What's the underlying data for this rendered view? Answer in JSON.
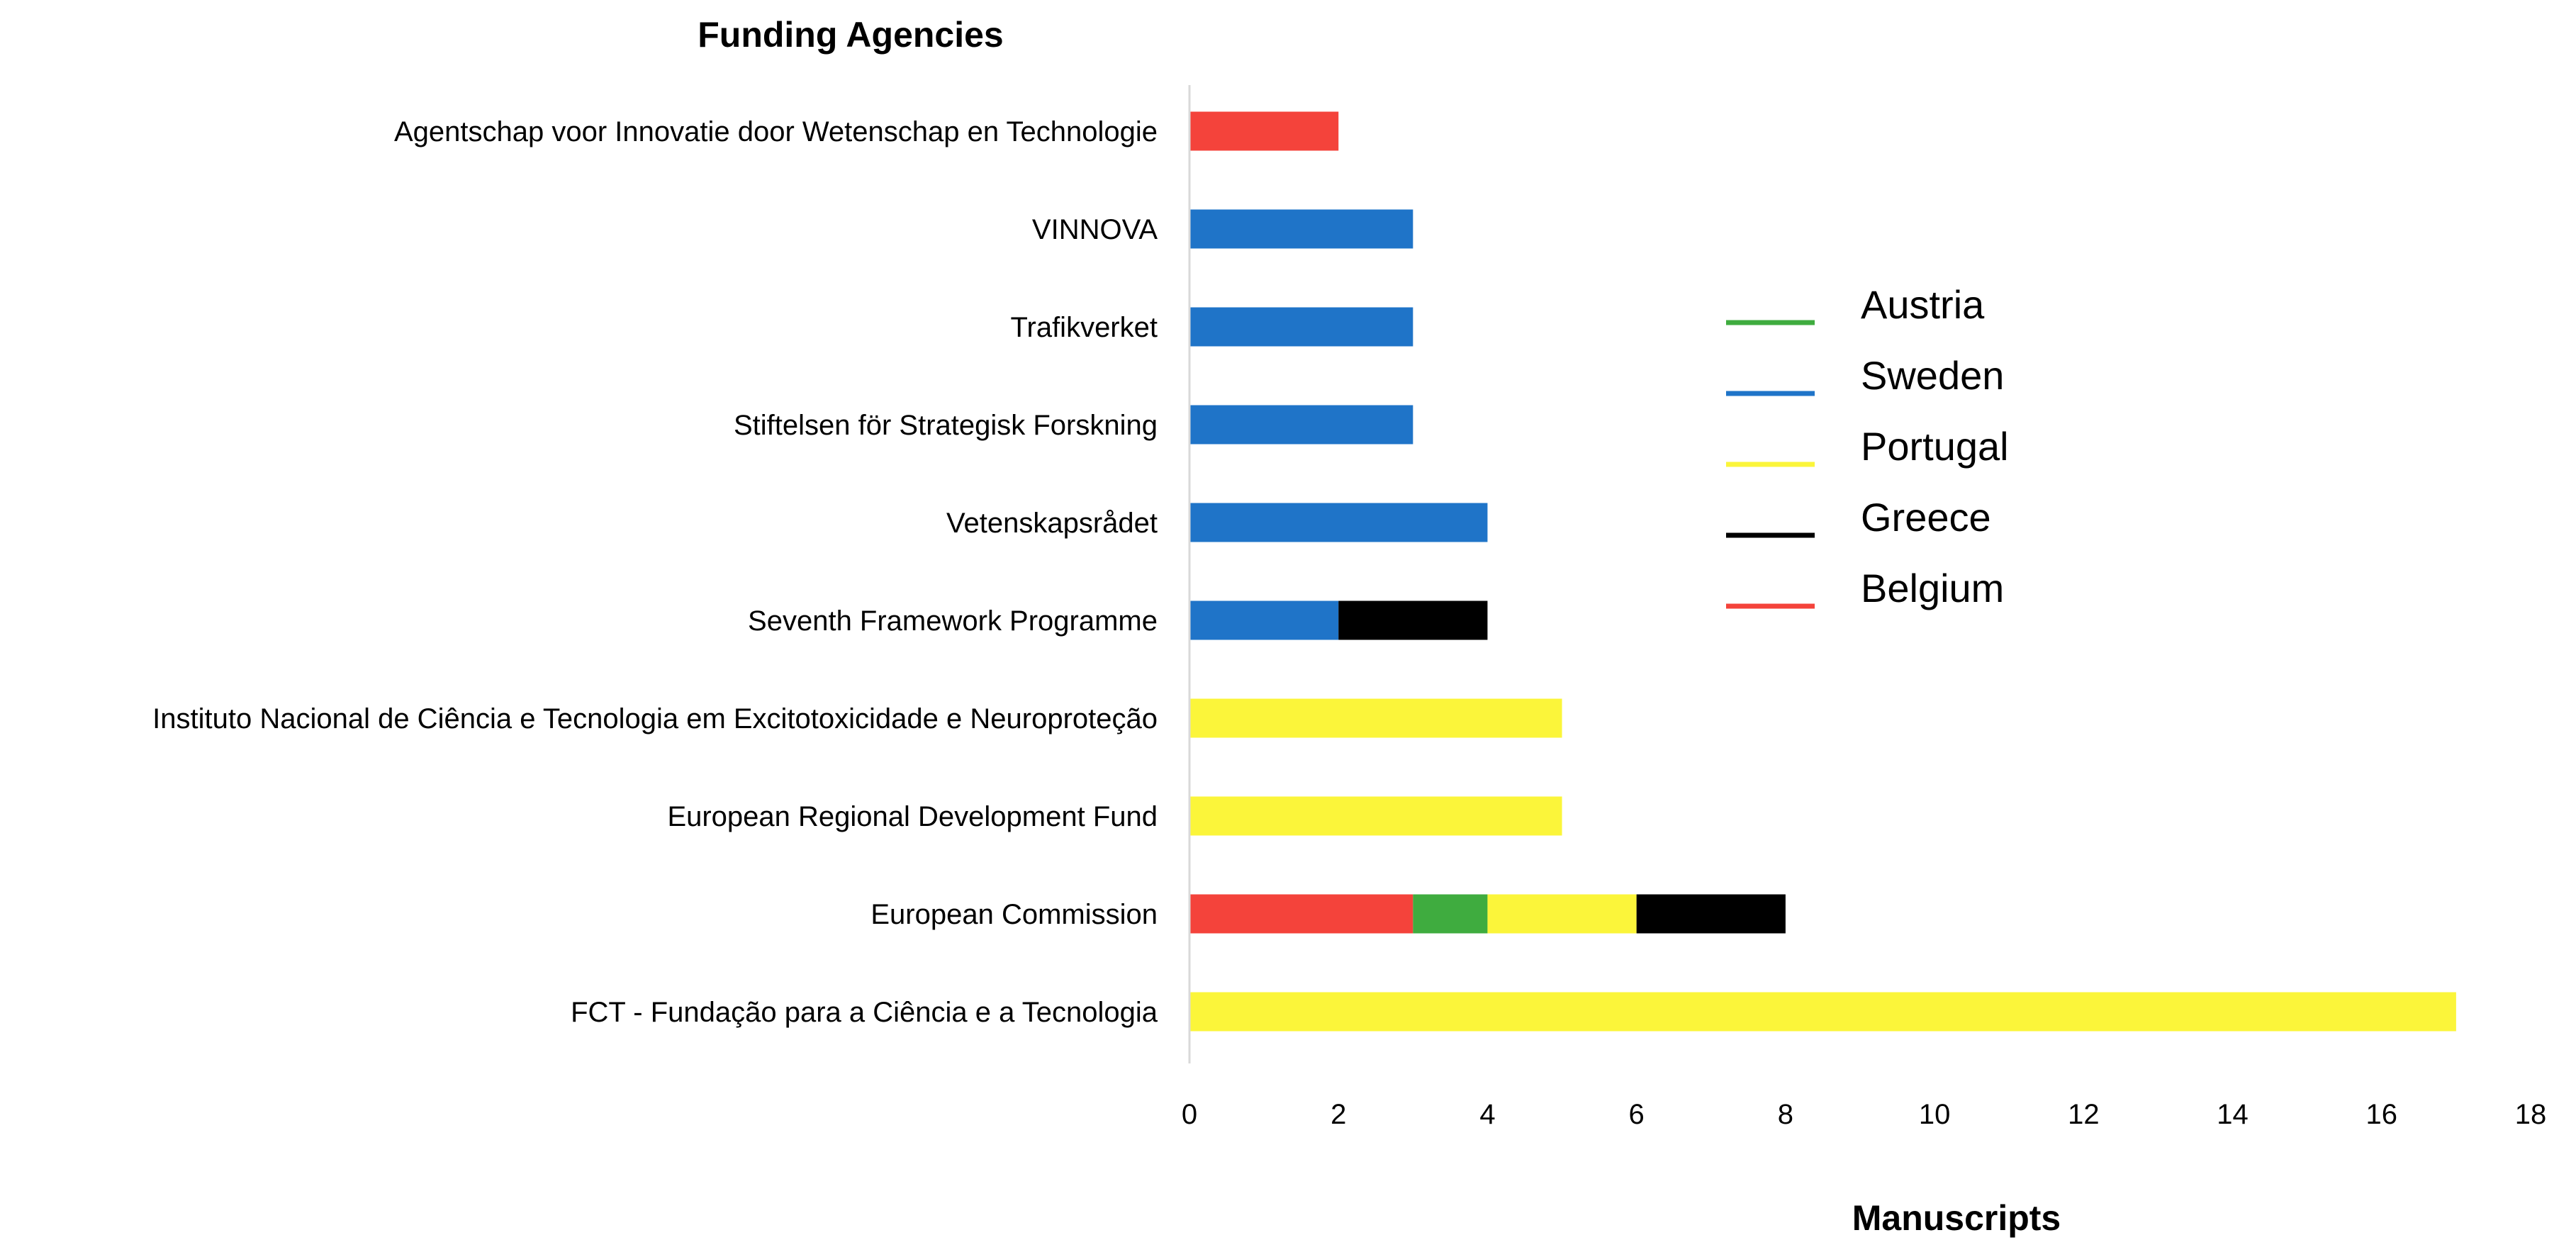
{
  "chart_data": {
    "type": "bar",
    "orientation": "horizontal",
    "stacked": true,
    "title": "Funding Agencies",
    "xlabel": "Manuscripts",
    "ylabel": "",
    "xlim": [
      0,
      18
    ],
    "xticks": [
      0,
      2,
      4,
      6,
      8,
      10,
      12,
      14,
      16,
      18
    ],
    "grid": false,
    "legend_position": "right",
    "categories": [
      "Agentschap voor Innovatie door Wetenschap en Technologie",
      "VINNOVA",
      "Trafikverket",
      "Stiftelsen för Strategisk Forskning",
      "Vetenskapsrådet",
      "Seventh Framework Programme",
      "Instituto Nacional de Ciência e Tecnologia em Excitotoxicidade e Neuroproteção",
      "European Regional Development Fund",
      "European Commission",
      "FCT - Fundação para a Ciência e a Tecnologia"
    ],
    "series": [
      {
        "name": "Belgium",
        "color": "#f4433b",
        "values": [
          2,
          0,
          0,
          0,
          0,
          0,
          0,
          0,
          3,
          0
        ]
      },
      {
        "name": "Sweden",
        "color": "#1f74c8",
        "values": [
          0,
          3,
          3,
          3,
          4,
          2,
          0,
          0,
          0,
          0
        ]
      },
      {
        "name": "Austria",
        "color": "#3fac3f",
        "values": [
          0,
          0,
          0,
          0,
          0,
          0,
          0,
          0,
          1,
          0
        ]
      },
      {
        "name": "Portugal",
        "color": "#fbf53a",
        "values": [
          0,
          0,
          0,
          0,
          0,
          0,
          5,
          5,
          2,
          17
        ]
      },
      {
        "name": "Greece",
        "color": "#000000",
        "values": [
          0,
          0,
          0,
          0,
          0,
          2,
          0,
          0,
          2,
          0
        ]
      }
    ],
    "legend_order": [
      "Austria",
      "Sweden",
      "Portugal",
      "Greece",
      "Belgium"
    ]
  }
}
